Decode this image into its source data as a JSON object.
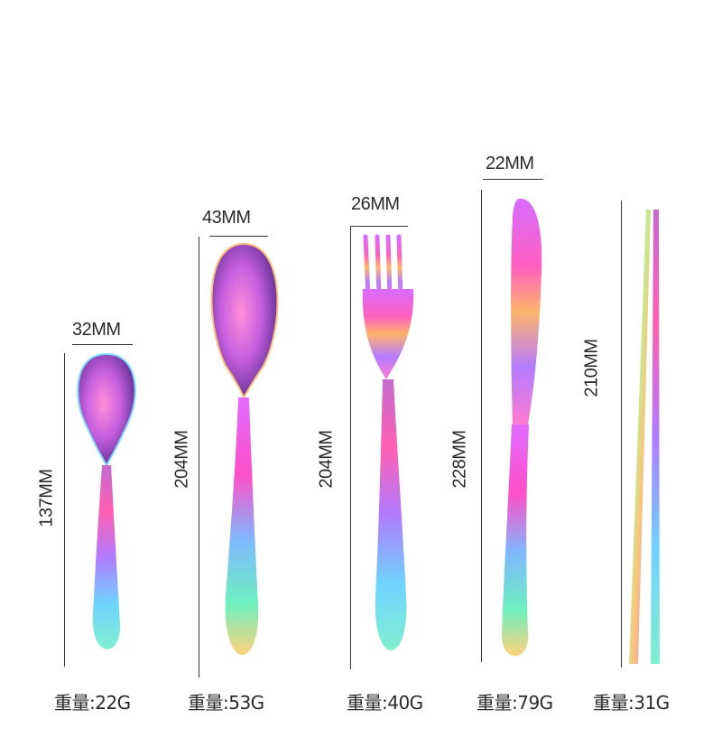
{
  "items": [
    {
      "width": "32MM",
      "length": "137MM",
      "weight": "重量:22G"
    },
    {
      "width": "43MM",
      "length": "204MM",
      "weight": "重量:53G"
    },
    {
      "width": "26MM",
      "length": "204MM",
      "weight": "重量:40G"
    },
    {
      "width": "22MM",
      "length": "228MM",
      "weight": "重量:79G"
    },
    {
      "width": "",
      "length": "210MM",
      "weight": "重量:31G"
    }
  ],
  "colors": {
    "rainbow": [
      "#7fd8ff",
      "#b36bff",
      "#ff4fd2",
      "#ffb36b",
      "#66e0c8"
    ],
    "line": "#333333"
  }
}
